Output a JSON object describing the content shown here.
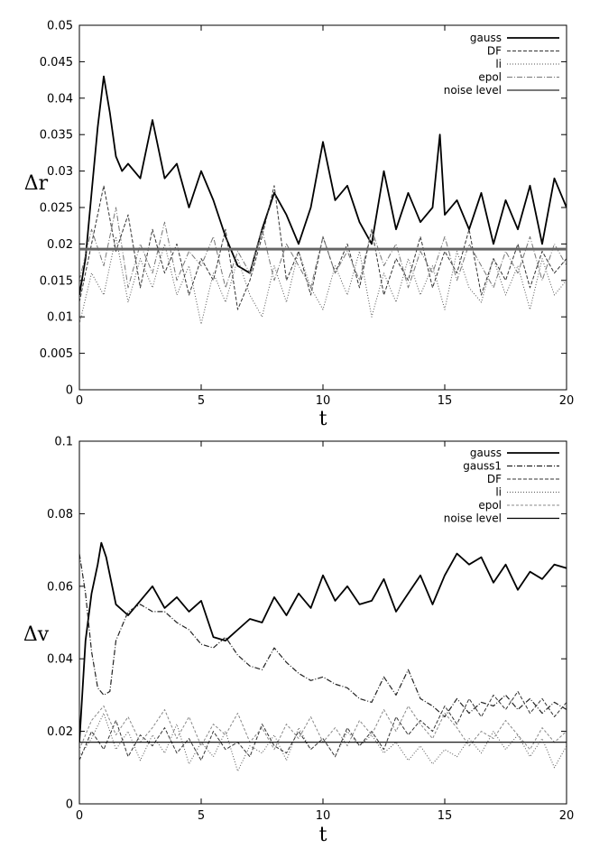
{
  "chart_data": [
    {
      "type": "line",
      "title": "",
      "xlabel": "t",
      "ylabel": "Δr",
      "xlim": [
        0,
        20
      ],
      "ylim": [
        0,
        0.05
      ],
      "xticks": [
        "0",
        "5",
        "10",
        "15",
        "20"
      ],
      "yticks": [
        "0",
        "0.005",
        "0.01",
        "0.015",
        "0.02",
        "0.025",
        "0.03",
        "0.035",
        "0.04",
        "0.045",
        "0.05"
      ],
      "grid": false,
      "legend_position": "top-right",
      "series": [
        {
          "name": "gauss",
          "color": "#000000",
          "x": [
            0,
            0.25,
            0.5,
            0.75,
            1,
            1.25,
            1.5,
            1.75,
            2,
            2.5,
            3,
            3.5,
            4,
            4.5,
            5,
            5.5,
            6,
            6.5,
            7,
            7.5,
            8,
            8.5,
            9,
            9.5,
            10,
            10.5,
            11,
            11.5,
            12,
            12.5,
            13,
            13.5,
            14,
            14.5,
            14.8,
            15,
            15.5,
            16,
            16.5,
            17,
            17.5,
            18,
            18.5,
            19,
            19.5,
            20
          ],
          "y": [
            0.013,
            0.018,
            0.027,
            0.036,
            0.043,
            0.038,
            0.032,
            0.03,
            0.031,
            0.029,
            0.037,
            0.029,
            0.031,
            0.025,
            0.03,
            0.026,
            0.021,
            0.017,
            0.016,
            0.022,
            0.027,
            0.024,
            0.02,
            0.025,
            0.034,
            0.026,
            0.028,
            0.023,
            0.02,
            0.03,
            0.022,
            0.027,
            0.023,
            0.025,
            0.035,
            0.024,
            0.026,
            0.022,
            0.027,
            0.02,
            0.026,
            0.022,
            0.028,
            0.02,
            0.029,
            0.025
          ]
        },
        {
          "name": "DF",
          "color": "#333333",
          "x": [
            0,
            0.5,
            1,
            1.5,
            2,
            2.5,
            3,
            3.5,
            4,
            4.5,
            5,
            5.5,
            6,
            6.5,
            7,
            7.5,
            8,
            8.5,
            9,
            9.5,
            10,
            10.5,
            11,
            11.5,
            12,
            12.5,
            13,
            13.5,
            14,
            14.5,
            15,
            15.5,
            16,
            16.5,
            17,
            17.5,
            18,
            18.5,
            19,
            19.5,
            20
          ],
          "y": [
            0.012,
            0.02,
            0.028,
            0.019,
            0.024,
            0.014,
            0.022,
            0.016,
            0.02,
            0.013,
            0.018,
            0.015,
            0.022,
            0.011,
            0.015,
            0.021,
            0.028,
            0.015,
            0.019,
            0.013,
            0.021,
            0.016,
            0.02,
            0.014,
            0.022,
            0.013,
            0.018,
            0.015,
            0.021,
            0.014,
            0.019,
            0.016,
            0.022,
            0.013,
            0.018,
            0.015,
            0.02,
            0.014,
            0.019,
            0.016,
            0.018
          ]
        },
        {
          "name": "li",
          "color": "#555555",
          "x": [
            0,
            0.5,
            1,
            1.5,
            2,
            2.5,
            3,
            3.5,
            4,
            4.5,
            5,
            5.5,
            6,
            6.5,
            7,
            7.5,
            8,
            8.5,
            9,
            9.5,
            10,
            10.5,
            11,
            11.5,
            12,
            12.5,
            13,
            13.5,
            14,
            14.5,
            15,
            15.5,
            16,
            16.5,
            17,
            17.5,
            18,
            18.5,
            19,
            19.5,
            20
          ],
          "y": [
            0.009,
            0.016,
            0.013,
            0.021,
            0.012,
            0.018,
            0.014,
            0.02,
            0.013,
            0.017,
            0.009,
            0.016,
            0.012,
            0.018,
            0.013,
            0.01,
            0.017,
            0.012,
            0.019,
            0.014,
            0.011,
            0.017,
            0.013,
            0.019,
            0.01,
            0.016,
            0.012,
            0.018,
            0.013,
            0.017,
            0.011,
            0.019,
            0.014,
            0.012,
            0.018,
            0.013,
            0.017,
            0.011,
            0.018,
            0.013,
            0.015
          ]
        },
        {
          "name": "epol",
          "color": "#777777",
          "x": [
            0,
            0.5,
            1,
            1.5,
            2,
            2.5,
            3,
            3.5,
            4,
            4.5,
            5,
            5.5,
            6,
            6.5,
            7,
            7.5,
            8,
            8.5,
            9,
            9.5,
            10,
            10.5,
            11,
            11.5,
            12,
            12.5,
            13,
            13.5,
            14,
            14.5,
            15,
            15.5,
            16,
            16.5,
            17,
            17.5,
            18,
            18.5,
            19,
            19.5,
            20
          ],
          "y": [
            0.015,
            0.022,
            0.017,
            0.025,
            0.014,
            0.02,
            0.016,
            0.023,
            0.015,
            0.019,
            0.017,
            0.021,
            0.014,
            0.019,
            0.016,
            0.022,
            0.015,
            0.02,
            0.017,
            0.014,
            0.021,
            0.016,
            0.019,
            0.015,
            0.022,
            0.017,
            0.02,
            0.014,
            0.019,
            0.016,
            0.021,
            0.015,
            0.02,
            0.017,
            0.014,
            0.019,
            0.016,
            0.021,
            0.015,
            0.02,
            0.017
          ]
        },
        {
          "name": "noise level",
          "color": "#666666",
          "x": [
            0,
            20
          ],
          "y": [
            0.0193,
            0.0193
          ]
        }
      ]
    },
    {
      "type": "line",
      "title": "",
      "xlabel": "t",
      "ylabel": "Δv",
      "xlim": [
        0,
        20
      ],
      "ylim": [
        0,
        0.1
      ],
      "xticks": [
        "0",
        "5",
        "10",
        "15",
        "20"
      ],
      "yticks": [
        "0",
        "0.02",
        "0.04",
        "0.06",
        "0.08",
        "0.1"
      ],
      "grid": false,
      "legend_position": "top-right",
      "series": [
        {
          "name": "gauss",
          "color": "#000000",
          "x": [
            0,
            0.25,
            0.5,
            0.75,
            0.9,
            1.1,
            1.5,
            2,
            2.5,
            3,
            3.5,
            4,
            4.5,
            5,
            5.5,
            6,
            6.5,
            7,
            7.5,
            8,
            8.5,
            9,
            9.5,
            10,
            10.5,
            11,
            11.5,
            12,
            12.5,
            13,
            13.5,
            14,
            14.5,
            15,
            15.5,
            16,
            16.5,
            17,
            17.5,
            18,
            18.5,
            19,
            19.5,
            20
          ],
          "y": [
            0.017,
            0.045,
            0.058,
            0.066,
            0.072,
            0.068,
            0.055,
            0.052,
            0.056,
            0.06,
            0.054,
            0.057,
            0.053,
            0.056,
            0.046,
            0.045,
            0.048,
            0.051,
            0.05,
            0.057,
            0.052,
            0.058,
            0.054,
            0.063,
            0.056,
            0.06,
            0.055,
            0.056,
            0.062,
            0.053,
            0.058,
            0.063,
            0.055,
            0.063,
            0.069,
            0.066,
            0.068,
            0.061,
            0.066,
            0.059,
            0.064,
            0.062,
            0.066,
            0.065
          ]
        },
        {
          "name": "gauss1",
          "color": "#222222",
          "x": [
            0,
            0.25,
            0.5,
            0.75,
            1,
            1.25,
            1.5,
            2,
            2.5,
            3,
            3.5,
            4,
            4.5,
            5,
            5.5,
            6,
            6.5,
            7,
            7.5,
            8,
            8.5,
            9,
            9.5,
            10,
            10.5,
            11,
            11.5,
            12,
            12.5,
            13,
            13.5,
            14,
            14.5,
            15,
            15.5,
            16,
            16.5,
            17,
            17.5,
            18,
            18.5,
            19,
            19.5,
            20
          ],
          "y": [
            0.069,
            0.058,
            0.042,
            0.032,
            0.03,
            0.031,
            0.045,
            0.053,
            0.055,
            0.053,
            0.053,
            0.05,
            0.048,
            0.044,
            0.043,
            0.046,
            0.041,
            0.038,
            0.037,
            0.043,
            0.039,
            0.036,
            0.034,
            0.035,
            0.033,
            0.032,
            0.029,
            0.028,
            0.035,
            0.03,
            0.037,
            0.029,
            0.027,
            0.024,
            0.029,
            0.025,
            0.028,
            0.027,
            0.03,
            0.026,
            0.029,
            0.025,
            0.028,
            0.026
          ]
        },
        {
          "name": "DF",
          "color": "#333333",
          "x": [
            0,
            0.5,
            1,
            1.5,
            2,
            2.5,
            3,
            3.5,
            4,
            4.5,
            5,
            5.5,
            6,
            6.5,
            7,
            7.5,
            8,
            8.5,
            9,
            9.5,
            10,
            10.5,
            11,
            11.5,
            12,
            12.5,
            13,
            13.5,
            14,
            14.5,
            15,
            15.5,
            16,
            16.5,
            17,
            17.5,
            18,
            18.5,
            19,
            19.5,
            20
          ],
          "y": [
            0.012,
            0.02,
            0.015,
            0.023,
            0.013,
            0.019,
            0.016,
            0.021,
            0.014,
            0.018,
            0.012,
            0.02,
            0.015,
            0.017,
            0.013,
            0.022,
            0.016,
            0.014,
            0.02,
            0.015,
            0.018,
            0.013,
            0.021,
            0.016,
            0.02,
            0.015,
            0.024,
            0.019,
            0.023,
            0.02,
            0.027,
            0.022,
            0.029,
            0.024,
            0.03,
            0.026,
            0.031,
            0.025,
            0.029,
            0.024,
            0.028
          ]
        },
        {
          "name": "li",
          "color": "#555555",
          "x": [
            0,
            0.5,
            1,
            1.5,
            2,
            2.5,
            3,
            3.5,
            4,
            4.5,
            5,
            5.5,
            6,
            6.5,
            7,
            7.5,
            8,
            8.5,
            9,
            9.5,
            10,
            10.5,
            11,
            11.5,
            12,
            12.5,
            13,
            13.5,
            14,
            14.5,
            15,
            15.5,
            16,
            16.5,
            17,
            17.5,
            18,
            18.5,
            19,
            19.5,
            20
          ],
          "y": [
            0.013,
            0.018,
            0.025,
            0.015,
            0.02,
            0.012,
            0.019,
            0.014,
            0.022,
            0.011,
            0.017,
            0.013,
            0.02,
            0.009,
            0.016,
            0.014,
            0.019,
            0.012,
            0.021,
            0.015,
            0.018,
            0.013,
            0.02,
            0.016,
            0.019,
            0.014,
            0.017,
            0.012,
            0.016,
            0.011,
            0.015,
            0.013,
            0.018,
            0.014,
            0.02,
            0.015,
            0.019,
            0.013,
            0.018,
            0.01,
            0.016
          ]
        },
        {
          "name": "epol",
          "color": "#888888",
          "x": [
            0,
            0.5,
            1,
            1.5,
            2,
            2.5,
            3,
            3.5,
            4,
            4.5,
            5,
            5.5,
            6,
            6.5,
            7,
            7.5,
            8,
            8.5,
            9,
            9.5,
            10,
            10.5,
            11,
            11.5,
            12,
            12.5,
            13,
            13.5,
            14,
            14.5,
            15,
            15.5,
            16,
            16.5,
            17,
            17.5,
            18,
            18.5,
            19,
            19.5,
            20
          ],
          "y": [
            0.015,
            0.023,
            0.027,
            0.019,
            0.024,
            0.017,
            0.021,
            0.026,
            0.018,
            0.024,
            0.016,
            0.022,
            0.019,
            0.025,
            0.017,
            0.021,
            0.015,
            0.022,
            0.018,
            0.024,
            0.017,
            0.021,
            0.016,
            0.023,
            0.019,
            0.026,
            0.02,
            0.027,
            0.022,
            0.018,
            0.025,
            0.021,
            0.016,
            0.02,
            0.018,
            0.023,
            0.019,
            0.015,
            0.021,
            0.017,
            0.02
          ]
        },
        {
          "name": "noise level",
          "color": "#000000",
          "x": [
            0,
            20
          ],
          "y": [
            0.017,
            0.017
          ]
        }
      ]
    }
  ]
}
